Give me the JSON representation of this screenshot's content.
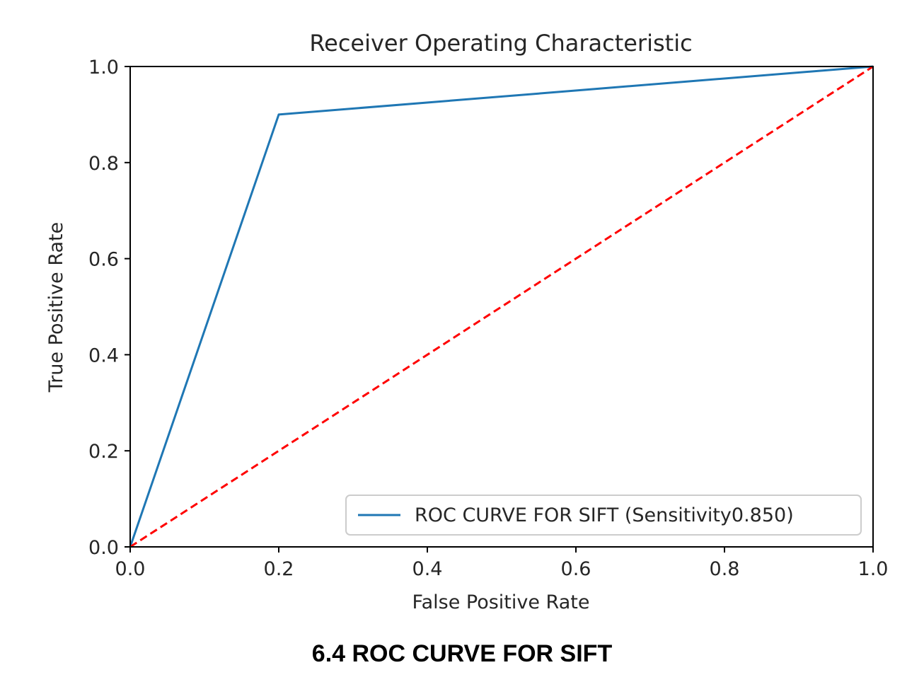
{
  "chart_data": {
    "type": "line",
    "title": "Receiver Operating Characteristic",
    "xlabel": "False Positive Rate",
    "ylabel": "True Positive Rate",
    "xlim": [
      0,
      1
    ],
    "ylim": [
      0,
      1
    ],
    "xticks": [
      0.0,
      0.2,
      0.4,
      0.6,
      0.8,
      1.0
    ],
    "xtick_labels": [
      "0.0",
      "0.2",
      "0.4",
      "0.6",
      "0.8",
      "1.0"
    ],
    "yticks": [
      0.0,
      0.2,
      0.4,
      0.6,
      0.8,
      1.0
    ],
    "ytick_labels": [
      "0.0",
      "0.2",
      "0.4",
      "0.6",
      "0.8",
      "1.0"
    ],
    "grid": false,
    "legend_position": "lower-right",
    "series": [
      {
        "name": "ROC CURVE FOR SIFT (Sensitivity0.850)",
        "color": "#1f77b4",
        "style": "solid",
        "x": [
          0.0,
          0.2,
          1.0
        ],
        "y": [
          0.0,
          0.9,
          1.0
        ]
      },
      {
        "color": "#ff0000",
        "style": "dashed",
        "x": [
          0.0,
          1.0
        ],
        "y": [
          0.0,
          1.0
        ]
      }
    ]
  },
  "caption": "6.4 ROC CURVE FOR SIFT"
}
